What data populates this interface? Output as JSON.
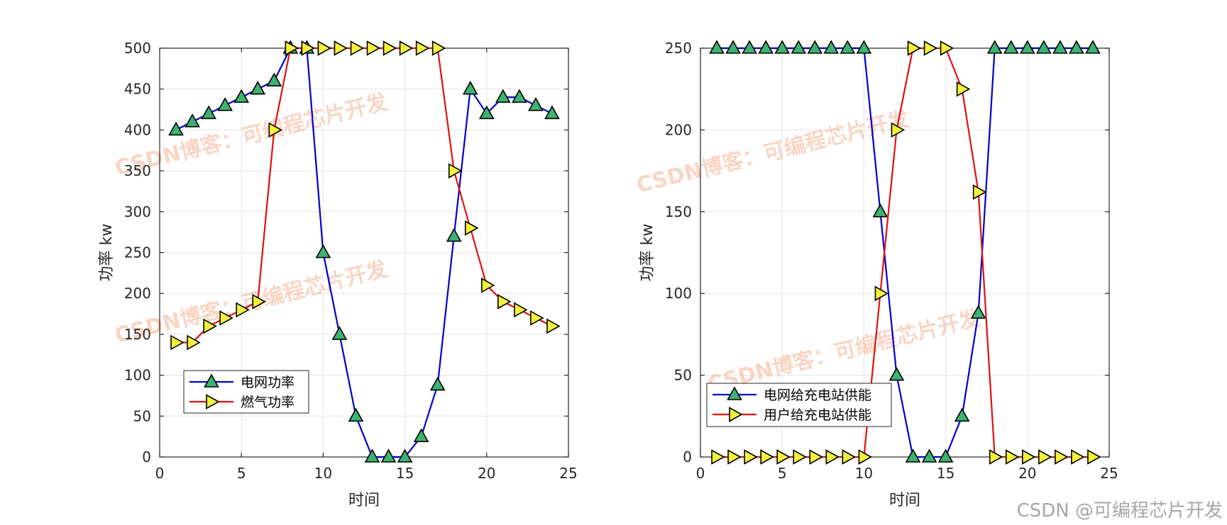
{
  "watermark": {
    "text": "CSDN博客：可编程芯片开发",
    "footer": "CSDN @可编程芯片开发"
  },
  "colors": {
    "blue_line": "#0000cc",
    "red_line": "#dd1111",
    "green_marker": "#3cb371",
    "yellow_marker": "#f2f23a",
    "grid": "#e3e3e3",
    "axis": "#262626"
  },
  "chart_data": [
    {
      "type": "line",
      "xlabel": "时间",
      "ylabel": "功率 kw",
      "xlim": [
        0,
        25
      ],
      "ylim": [
        0,
        500
      ],
      "xticks": [
        0,
        5,
        10,
        15,
        20,
        25
      ],
      "yticks": [
        0,
        50,
        100,
        150,
        200,
        250,
        300,
        350,
        400,
        450,
        500
      ],
      "grid": true,
      "legend_position": "bottom-left",
      "x": [
        1,
        2,
        3,
        4,
        5,
        6,
        7,
        8,
        9,
        10,
        11,
        12,
        13,
        14,
        15,
        16,
        17,
        18,
        19,
        20,
        21,
        22,
        23,
        24
      ],
      "series": [
        {
          "name": "电网功率",
          "marker": "triangle-up",
          "color": "#0000cc",
          "marker_color": "#3cb371",
          "values": [
            400,
            410,
            420,
            430,
            440,
            450,
            460,
            500,
            500,
            250,
            150,
            50,
            0,
            0,
            0,
            25,
            88,
            270,
            450,
            420,
            440,
            440,
            430,
            420
          ]
        },
        {
          "name": "燃气功率",
          "marker": "triangle-right",
          "color": "#dd1111",
          "marker_color": "#f2f23a",
          "values": [
            140,
            140,
            160,
            170,
            180,
            190,
            400,
            500,
            500,
            500,
            500,
            500,
            500,
            500,
            500,
            500,
            500,
            350,
            280,
            210,
            190,
            180,
            170,
            160
          ]
        }
      ]
    },
    {
      "type": "line",
      "xlabel": "时间",
      "ylabel": "功率 kw",
      "xlim": [
        0,
        25
      ],
      "ylim": [
        0,
        250
      ],
      "xticks": [
        0,
        5,
        10,
        15,
        20,
        25
      ],
      "yticks": [
        0,
        50,
        100,
        150,
        200,
        250
      ],
      "grid": true,
      "legend_position": "bottom-left",
      "x": [
        1,
        2,
        3,
        4,
        5,
        6,
        7,
        8,
        9,
        10,
        11,
        12,
        13,
        14,
        15,
        16,
        17,
        18,
        19,
        20,
        21,
        22,
        23,
        24
      ],
      "series": [
        {
          "name": "电网给充电站供能",
          "marker": "triangle-up",
          "color": "#0000cc",
          "marker_color": "#3cb371",
          "values": [
            250,
            250,
            250,
            250,
            250,
            250,
            250,
            250,
            250,
            250,
            150,
            50,
            0,
            0,
            0,
            25,
            88,
            250,
            250,
            250,
            250,
            250,
            250,
            250
          ]
        },
        {
          "name": "用户给充电站供能",
          "marker": "triangle-right",
          "color": "#dd1111",
          "marker_color": "#f2f23a",
          "values": [
            0,
            0,
            0,
            0,
            0,
            0,
            0,
            0,
            0,
            0,
            100,
            200,
            250,
            250,
            250,
            225,
            162,
            0,
            0,
            0,
            0,
            0,
            0,
            0
          ]
        }
      ]
    }
  ]
}
